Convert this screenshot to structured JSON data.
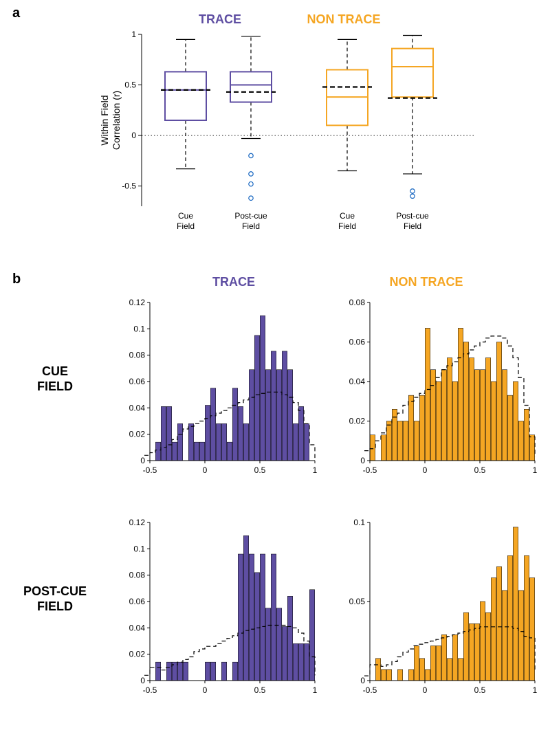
{
  "colors": {
    "trace": "#5e4ea2",
    "nontrace": "#f5a623",
    "outlier": "#1565c0",
    "axis": "#000000",
    "bg": "#ffffff"
  },
  "panel_a": {
    "label": "a",
    "title_trace": "TRACE",
    "title_nontrace": "NON TRACE",
    "ylabel_line1": "Within Field",
    "ylabel_line2": "Correlation (r)",
    "ylim": [
      -0.7,
      1.0
    ],
    "yticks": [
      -0.5,
      0,
      0.5,
      1
    ],
    "xticks": [
      "Cue\nField",
      "Post-cue\nField",
      "Cue\nField",
      "Post-cue\nField"
    ],
    "boxes": [
      {
        "color": "trace",
        "x": 1,
        "q1": 0.15,
        "median": 0.45,
        "q3": 0.63,
        "wlow": -0.33,
        "whigh": 0.95,
        "mean": 0.45,
        "outliers": []
      },
      {
        "color": "trace",
        "x": 2,
        "q1": 0.33,
        "median": 0.5,
        "q3": 0.63,
        "wlow": -0.03,
        "whigh": 0.98,
        "mean": 0.43,
        "outliers": [
          -0.2,
          -0.38,
          -0.48,
          -0.62
        ]
      },
      {
        "color": "nontrace",
        "x": 3,
        "q1": 0.1,
        "median": 0.38,
        "q3": 0.65,
        "wlow": -0.35,
        "whigh": 0.95,
        "mean": 0.48,
        "outliers": []
      },
      {
        "color": "nontrace",
        "x": 4,
        "q1": 0.38,
        "median": 0.68,
        "q3": 0.86,
        "wlow": -0.38,
        "whigh": 0.99,
        "mean": 0.37,
        "outliers": [
          -0.55,
          -0.6
        ]
      }
    ]
  },
  "panel_b": {
    "label": "b",
    "col_title_trace": "TRACE",
    "col_title_nontrace": "NON TRACE",
    "row_label_cue": "CUE\nFIELD",
    "row_label_postcue": "POST-CUE\nFIELD",
    "xlim": [
      -0.5,
      1.0
    ],
    "xticks": [
      -0.5,
      0,
      0.5,
      1
    ],
    "charts": [
      {
        "color": "trace",
        "ylim": [
          0,
          0.12
        ],
        "yticks": [
          0,
          0.02,
          0.04,
          0.06,
          0.08,
          0.1,
          0.12
        ],
        "bars": [
          0,
          0.014,
          0.041,
          0.041,
          0.014,
          0.028,
          0,
          0.028,
          0.014,
          0.014,
          0.042,
          0.055,
          0.028,
          0.028,
          0.014,
          0.055,
          0.041,
          0.028,
          0.069,
          0.095,
          0.11,
          0.069,
          0.083,
          0.069,
          0.083,
          0.069,
          0.028,
          0.041,
          0.028,
          0
        ],
        "dashed": [
          [
            -0.55,
            0.004
          ],
          [
            -0.5,
            0.006
          ],
          [
            -0.45,
            0.008
          ],
          [
            -0.4,
            0.01
          ],
          [
            -0.35,
            0.012
          ],
          [
            -0.3,
            0.016
          ],
          [
            -0.25,
            0.02
          ],
          [
            -0.2,
            0.024
          ],
          [
            -0.15,
            0.026
          ],
          [
            -0.1,
            0.028
          ],
          [
            -0.05,
            0.03
          ],
          [
            0,
            0.032
          ],
          [
            0.05,
            0.034
          ],
          [
            0.1,
            0.036
          ],
          [
            0.15,
            0.038
          ],
          [
            0.2,
            0.04
          ],
          [
            0.25,
            0.042
          ],
          [
            0.3,
            0.044
          ],
          [
            0.35,
            0.046
          ],
          [
            0.4,
            0.048
          ],
          [
            0.45,
            0.05
          ],
          [
            0.5,
            0.051
          ],
          [
            0.55,
            0.052
          ],
          [
            0.6,
            0.052
          ],
          [
            0.65,
            0.052
          ],
          [
            0.7,
            0.05
          ],
          [
            0.75,
            0.048
          ],
          [
            0.8,
            0.044
          ],
          [
            0.85,
            0.038
          ],
          [
            0.9,
            0.028
          ],
          [
            0.95,
            0.012
          ],
          [
            1.0,
            0.002
          ]
        ]
      },
      {
        "color": "nontrace",
        "ylim": [
          0,
          0.08
        ],
        "yticks": [
          0,
          0.02,
          0.04,
          0.06,
          0.08
        ],
        "bars": [
          0.013,
          0,
          0.013,
          0.02,
          0.026,
          0.02,
          0.02,
          0.033,
          0.02,
          0.033,
          0.067,
          0.046,
          0.04,
          0.046,
          0.052,
          0.04,
          0.067,
          0.06,
          0.052,
          0.046,
          0.046,
          0.052,
          0.04,
          0.06,
          0.046,
          0.033,
          0.04,
          0.02,
          0.026,
          0.013
        ],
        "dashed": [
          [
            -0.55,
            0.005
          ],
          [
            -0.5,
            0.006
          ],
          [
            -0.45,
            0.01
          ],
          [
            -0.4,
            0.014
          ],
          [
            -0.35,
            0.018
          ],
          [
            -0.3,
            0.022
          ],
          [
            -0.25,
            0.024
          ],
          [
            -0.2,
            0.028
          ],
          [
            -0.15,
            0.03
          ],
          [
            -0.1,
            0.032
          ],
          [
            -0.05,
            0.034
          ],
          [
            0,
            0.036
          ],
          [
            0.05,
            0.038
          ],
          [
            0.1,
            0.042
          ],
          [
            0.15,
            0.046
          ],
          [
            0.2,
            0.048
          ],
          [
            0.25,
            0.05
          ],
          [
            0.3,
            0.052
          ],
          [
            0.35,
            0.054
          ],
          [
            0.4,
            0.056
          ],
          [
            0.45,
            0.058
          ],
          [
            0.5,
            0.06
          ],
          [
            0.55,
            0.062
          ],
          [
            0.6,
            0.063
          ],
          [
            0.65,
            0.063
          ],
          [
            0.7,
            0.062
          ],
          [
            0.75,
            0.058
          ],
          [
            0.8,
            0.052
          ],
          [
            0.85,
            0.042
          ],
          [
            0.9,
            0.028
          ],
          [
            0.95,
            0.012
          ],
          [
            1.0,
            0.002
          ]
        ]
      },
      {
        "color": "trace",
        "ylim": [
          0,
          0.12
        ],
        "yticks": [
          0,
          0.02,
          0.04,
          0.06,
          0.08,
          0.1,
          0.12
        ],
        "bars": [
          0,
          0.014,
          0,
          0.014,
          0.014,
          0.014,
          0.014,
          0,
          0,
          0,
          0.014,
          0.014,
          0,
          0.014,
          0,
          0.014,
          0.096,
          0.11,
          0.096,
          0.082,
          0.096,
          0.055,
          0.096,
          0.055,
          0.041,
          0.064,
          0.028,
          0.028,
          0.028,
          0.069
        ],
        "dashed": [
          [
            -0.55,
            0.004
          ],
          [
            -0.5,
            0.01
          ],
          [
            -0.45,
            0.01
          ],
          [
            -0.4,
            0.008
          ],
          [
            -0.35,
            0.01
          ],
          [
            -0.3,
            0.012
          ],
          [
            -0.25,
            0.014
          ],
          [
            -0.2,
            0.016
          ],
          [
            -0.15,
            0.018
          ],
          [
            -0.1,
            0.022
          ],
          [
            -0.05,
            0.024
          ],
          [
            0,
            0.026
          ],
          [
            0.05,
            0.026
          ],
          [
            0.1,
            0.028
          ],
          [
            0.15,
            0.03
          ],
          [
            0.2,
            0.032
          ],
          [
            0.25,
            0.034
          ],
          [
            0.3,
            0.036
          ],
          [
            0.35,
            0.038
          ],
          [
            0.4,
            0.039
          ],
          [
            0.45,
            0.04
          ],
          [
            0.5,
            0.041
          ],
          [
            0.55,
            0.042
          ],
          [
            0.6,
            0.042
          ],
          [
            0.65,
            0.042
          ],
          [
            0.7,
            0.042
          ],
          [
            0.75,
            0.041
          ],
          [
            0.8,
            0.04
          ],
          [
            0.85,
            0.036
          ],
          [
            0.9,
            0.03
          ],
          [
            0.95,
            0.018
          ],
          [
            1.0,
            0.004
          ]
        ]
      },
      {
        "color": "nontrace",
        "ylim": [
          0,
          0.1
        ],
        "yticks": [
          0,
          0.05,
          0.1
        ],
        "bars": [
          0,
          0.014,
          0.007,
          0.007,
          0,
          0.007,
          0,
          0.007,
          0.022,
          0.014,
          0.007,
          0.022,
          0.022,
          0.029,
          0.014,
          0.029,
          0.014,
          0.043,
          0.036,
          0.036,
          0.05,
          0.043,
          0.065,
          0.072,
          0.057,
          0.079,
          0.097,
          0.057,
          0.079,
          0.065
        ],
        "dashed": [
          [
            -0.55,
            0.003
          ],
          [
            -0.5,
            0.01
          ],
          [
            -0.45,
            0.01
          ],
          [
            -0.4,
            0.009
          ],
          [
            -0.35,
            0.01
          ],
          [
            -0.3,
            0.012
          ],
          [
            -0.25,
            0.015
          ],
          [
            -0.2,
            0.018
          ],
          [
            -0.15,
            0.02
          ],
          [
            -0.1,
            0.022
          ],
          [
            -0.05,
            0.023
          ],
          [
            0,
            0.024
          ],
          [
            0.05,
            0.025
          ],
          [
            0.1,
            0.026
          ],
          [
            0.15,
            0.027
          ],
          [
            0.2,
            0.028
          ],
          [
            0.25,
            0.029
          ],
          [
            0.3,
            0.03
          ],
          [
            0.35,
            0.031
          ],
          [
            0.4,
            0.032
          ],
          [
            0.45,
            0.033
          ],
          [
            0.5,
            0.034
          ],
          [
            0.55,
            0.034
          ],
          [
            0.6,
            0.034
          ],
          [
            0.65,
            0.034
          ],
          [
            0.7,
            0.034
          ],
          [
            0.75,
            0.034
          ],
          [
            0.8,
            0.033
          ],
          [
            0.85,
            0.031
          ],
          [
            0.9,
            0.028
          ],
          [
            0.95,
            0.027
          ],
          [
            1.0,
            0.006
          ]
        ]
      }
    ]
  }
}
